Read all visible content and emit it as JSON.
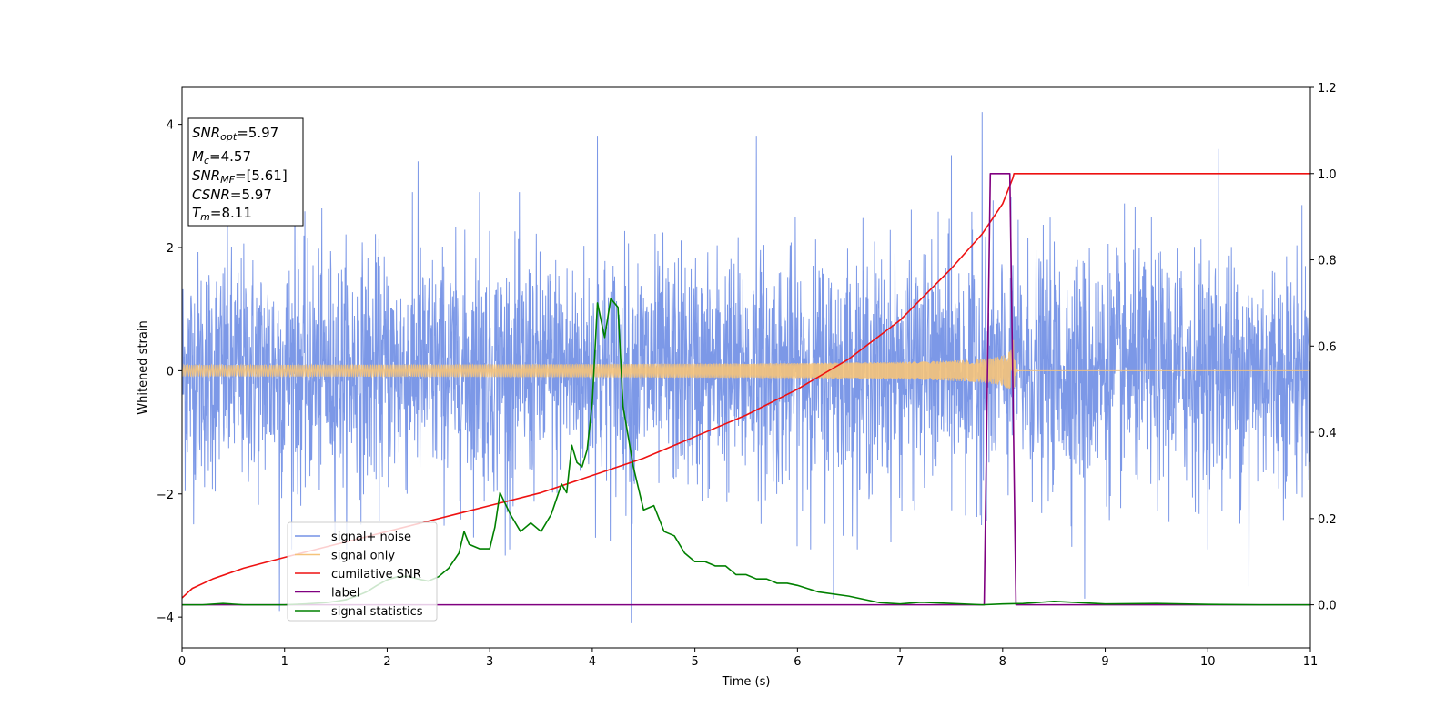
{
  "chart_data": {
    "type": "line",
    "xlabel": "Time (s)",
    "ylabel": "Whitened strain",
    "xlim": [
      0,
      11
    ],
    "ylim": [
      -4.5,
      4.6
    ],
    "y2lim": [
      -0.1,
      1.2
    ],
    "x_ticks": [
      0,
      1,
      2,
      3,
      4,
      5,
      6,
      7,
      8,
      9,
      10,
      11
    ],
    "y_ticks": [
      -4,
      -2,
      0,
      2,
      4
    ],
    "y2_ticks": [
      "0.0",
      "0.2",
      "0.4",
      "0.6",
      "0.8",
      "1.0",
      "1.2"
    ],
    "legend_position": "lower-left",
    "info_box": {
      "snr_opt": {
        "main": "SNR",
        "sub": "opt",
        "value": "=5.97"
      },
      "mc": {
        "main": "M",
        "sub": "c",
        "value": "=4.57"
      },
      "snr_mf": {
        "main": "SNR",
        "sub": "MF",
        "value": "=[5.61]"
      },
      "csnr": {
        "main": "CSNR",
        "value": "=5.97"
      },
      "tm": {
        "main": "T",
        "sub": "m",
        "value": "=8.11"
      }
    },
    "series": [
      {
        "name": "signal+ noise",
        "color": "#7592e6",
        "axis": "left",
        "style": "noise",
        "std": 0.95,
        "outliers": [
          [
            0.95,
            -3.9
          ],
          [
            1.1,
            3.0
          ],
          [
            2.3,
            3.4
          ],
          [
            2.9,
            2.9
          ],
          [
            3.15,
            -3.0
          ],
          [
            4.05,
            3.8
          ],
          [
            4.38,
            -4.1
          ],
          [
            5.6,
            3.8
          ],
          [
            6.35,
            -3.7
          ],
          [
            7.5,
            3.5
          ],
          [
            7.8,
            4.2
          ],
          [
            8.8,
            -3.7
          ],
          [
            10.1,
            3.6
          ],
          [
            10.4,
            -3.5
          ],
          [
            11.0,
            3.4
          ]
        ]
      },
      {
        "name": "signal only",
        "color": "#f5c37a",
        "axis": "left",
        "style": "chirp",
        "t_merge": 8.11,
        "amp_end": 0.58
      },
      {
        "name": "cumilative SNR",
        "color": "#ee1111",
        "axis": "right",
        "style": "line",
        "x": [
          0.0,
          0.1,
          0.3,
          0.6,
          1.0,
          1.5,
          2.0,
          2.5,
          3.0,
          3.5,
          4.0,
          4.5,
          5.0,
          5.5,
          6.0,
          6.5,
          7.0,
          7.5,
          7.8,
          8.0,
          8.1,
          8.11,
          11.0
        ],
        "y": [
          0.016,
          0.038,
          0.06,
          0.085,
          0.11,
          0.14,
          0.17,
          0.2,
          0.23,
          0.26,
          0.3,
          0.34,
          0.39,
          0.44,
          0.5,
          0.57,
          0.66,
          0.78,
          0.86,
          0.93,
          0.99,
          1.0,
          1.0
        ]
      },
      {
        "name": "label",
        "color": "#800080",
        "axis": "right",
        "style": "line",
        "x": [
          0.0,
          7.82,
          7.88,
          8.07,
          8.13,
          11.0
        ],
        "y": [
          0.0,
          0.0,
          1.0,
          1.0,
          0.0,
          0.0
        ]
      },
      {
        "name": "signal statistics",
        "color": "#008000",
        "axis": "right",
        "style": "line",
        "x": [
          0.0,
          0.2,
          0.4,
          0.6,
          0.8,
          1.0,
          1.2,
          1.4,
          1.5,
          1.6,
          1.7,
          1.8,
          1.9,
          2.0,
          2.1,
          2.2,
          2.3,
          2.4,
          2.5,
          2.6,
          2.7,
          2.75,
          2.8,
          2.9,
          3.0,
          3.05,
          3.1,
          3.2,
          3.3,
          3.4,
          3.5,
          3.6,
          3.7,
          3.75,
          3.8,
          3.85,
          3.9,
          3.95,
          4.0,
          4.05,
          4.12,
          4.18,
          4.25,
          4.3,
          4.4,
          4.5,
          4.6,
          4.7,
          4.8,
          4.9,
          5.0,
          5.1,
          5.2,
          5.3,
          5.4,
          5.5,
          5.6,
          5.7,
          5.8,
          5.9,
          6.0,
          6.2,
          6.5,
          6.8,
          7.0,
          7.2,
          7.5,
          7.8,
          8.0,
          8.2,
          8.5,
          9.0,
          9.5,
          10.0,
          10.5,
          11.0
        ],
        "y": [
          0.0,
          0.0,
          0.003,
          0.0,
          0.0,
          0.0,
          0.002,
          0.005,
          0.008,
          0.012,
          0.02,
          0.03,
          0.045,
          0.058,
          0.065,
          0.066,
          0.06,
          0.055,
          0.065,
          0.085,
          0.12,
          0.17,
          0.14,
          0.13,
          0.13,
          0.18,
          0.26,
          0.21,
          0.17,
          0.19,
          0.17,
          0.21,
          0.28,
          0.26,
          0.37,
          0.33,
          0.32,
          0.36,
          0.47,
          0.7,
          0.62,
          0.71,
          0.69,
          0.46,
          0.32,
          0.22,
          0.23,
          0.17,
          0.16,
          0.12,
          0.1,
          0.1,
          0.09,
          0.09,
          0.07,
          0.07,
          0.06,
          0.06,
          0.05,
          0.05,
          0.045,
          0.03,
          0.02,
          0.005,
          0.002,
          0.006,
          0.003,
          0.0,
          0.002,
          0.003,
          0.008,
          0.002,
          0.003,
          0.001,
          0.0,
          0.0
        ]
      }
    ]
  }
}
